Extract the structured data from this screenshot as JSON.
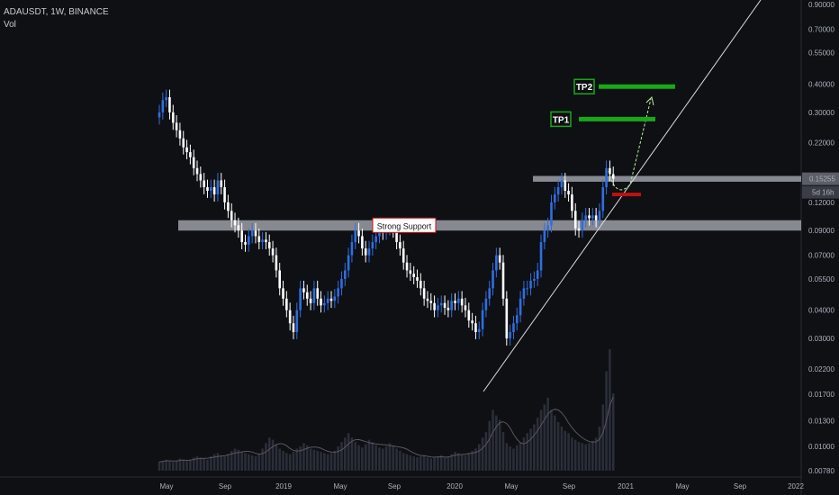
{
  "header": {
    "symbol": "ADAUSDT, 1W, BINANCE",
    "volume_label": "Vol"
  },
  "colors": {
    "background": "#0f1014",
    "up": "#2f6ee0",
    "down": "#ffffff",
    "support_zone": "#a5a8b0",
    "target": "#18a818",
    "stop": "#c01010",
    "trendline": "#dddddd",
    "projection": "#b9f09a"
  },
  "chart_data": {
    "type": "candlestick",
    "scale": "log",
    "y_ticks": [
      "0.90000",
      "0.70000",
      "0.55000",
      "0.40000",
      "0.30000",
      "0.22000",
      "0.15255",
      "0.12000",
      "0.09000",
      "0.07000",
      "0.05500",
      "0.04000",
      "0.03000",
      "0.02200",
      "0.01700",
      "0.01300",
      "0.01000",
      "0.00780"
    ],
    "x_ticks": [
      "May",
      "Sep",
      "2019",
      "May",
      "Sep",
      "2020",
      "May",
      "Sep",
      "2021",
      "May",
      "Sep",
      "2022"
    ],
    "last_price": "0.15255",
    "countdown": "5d 16h",
    "support_label": "Strong Support",
    "targets": [
      {
        "label": "TP1",
        "price": 0.28
      },
      {
        "label": "TP2",
        "price": 0.39
      }
    ],
    "stop_price": 0.13,
    "zones": [
      {
        "name": "support",
        "low": 0.09,
        "high": 0.1
      },
      {
        "name": "resistance",
        "low": 0.148,
        "high": 0.157
      }
    ],
    "closes": [
      0.3,
      0.34,
      0.35,
      0.3,
      0.27,
      0.25,
      0.23,
      0.21,
      0.2,
      0.19,
      0.17,
      0.16,
      0.15,
      0.14,
      0.135,
      0.14,
      0.13,
      0.15,
      0.14,
      0.12,
      0.11,
      0.1,
      0.095,
      0.09,
      0.08,
      0.078,
      0.085,
      0.09,
      0.085,
      0.08,
      0.082,
      0.08,
      0.075,
      0.07,
      0.06,
      0.05,
      0.045,
      0.04,
      0.035,
      0.032,
      0.04,
      0.05,
      0.048,
      0.045,
      0.043,
      0.05,
      0.045,
      0.042,
      0.043,
      0.045,
      0.044,
      0.046,
      0.05,
      0.055,
      0.06,
      0.07,
      0.08,
      0.09,
      0.085,
      0.075,
      0.07,
      0.075,
      0.08,
      0.085,
      0.09,
      0.088,
      0.092,
      0.095,
      0.09,
      0.08,
      0.075,
      0.065,
      0.06,
      0.058,
      0.056,
      0.054,
      0.05,
      0.045,
      0.044,
      0.043,
      0.04,
      0.042,
      0.043,
      0.041,
      0.04,
      0.044,
      0.043,
      0.045,
      0.042,
      0.04,
      0.036,
      0.035,
      0.032,
      0.033,
      0.04,
      0.045,
      0.05,
      0.06,
      0.07,
      0.065,
      0.045,
      0.03,
      0.032,
      0.035,
      0.038,
      0.045,
      0.05,
      0.05,
      0.054,
      0.055,
      0.06,
      0.08,
      0.09,
      0.095,
      0.12,
      0.13,
      0.14,
      0.15,
      0.135,
      0.13,
      0.11,
      0.092,
      0.09,
      0.1,
      0.105,
      0.102,
      0.105,
      0.1,
      0.11,
      0.14,
      0.17,
      0.16,
      0.15255
    ],
    "volumes": [
      0.8,
      0.9,
      1,
      0.9,
      0.8,
      0.9,
      1.1,
      1,
      0.9,
      1,
      1.2,
      1.3,
      1.2,
      1.1,
      1,
      1.3,
      1.5,
      1.6,
      1.4,
      1.3,
      1.5,
      1.8,
      2,
      1.9,
      1.7,
      1.6,
      1.5,
      1.4,
      1.3,
      1.5,
      2,
      2.5,
      3,
      2.8,
      2.4,
      2,
      1.8,
      1.6,
      1.5,
      1.7,
      2,
      2.2,
      2.5,
      2.3,
      2,
      1.9,
      1.8,
      1.7,
      1.6,
      1.5,
      1.6,
      1.8,
      2.2,
      2.6,
      3,
      3.4,
      3,
      2.6,
      2.3,
      2.1,
      2.4,
      2.8,
      2.6,
      2.3,
      2.1,
      2,
      2.2,
      2.5,
      2.3,
      2,
      1.8,
      1.6,
      1.5,
      1.4,
      1.3,
      1.2,
      1.3,
      1.4,
      1.2,
      1.1,
      1.2,
      1.3,
      1.4,
      1.2,
      1.3,
      1.5,
      1.7,
      1.6,
      1.5,
      1.4,
      1.6,
      1.8,
      2,
      2.4,
      3,
      3.5,
      4.5,
      5.5,
      5,
      4.6,
      3.5,
      2.5,
      2.2,
      2,
      2.3,
      2.6,
      3,
      3.4,
      3.8,
      4.2,
      4.8,
      5.5,
      6,
      6.6,
      5.5,
      5,
      4.4,
      4,
      3.6,
      3.4,
      3,
      2.8,
      2.6,
      2.5,
      2.4,
      2.5,
      2.7,
      3,
      4,
      6,
      9,
      11,
      7
    ]
  }
}
